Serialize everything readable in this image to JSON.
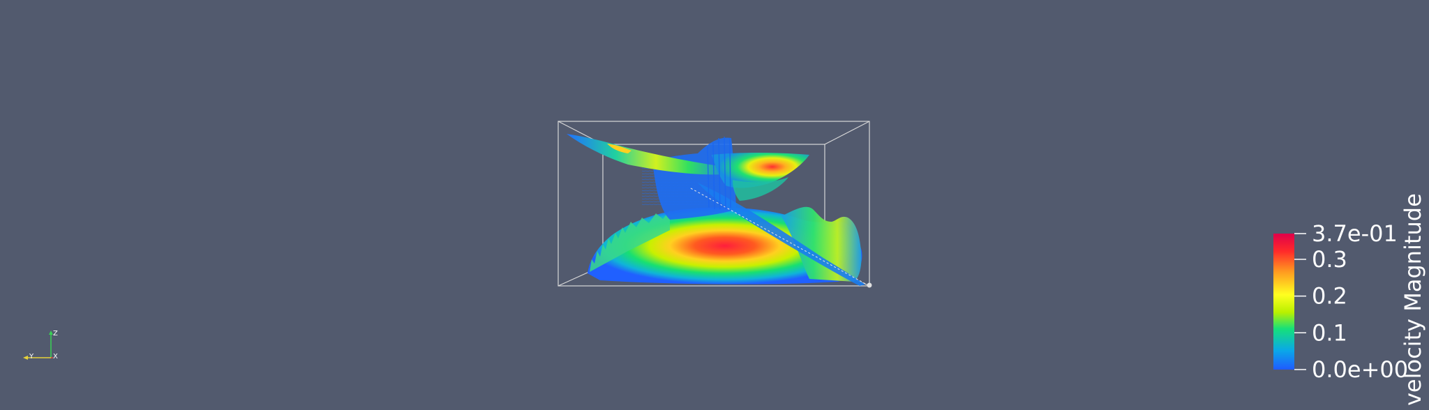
{
  "scene": {
    "background": "#525a6e",
    "colormap": [
      "#1f5bff",
      "#0aa8e8",
      "#16e07a",
      "#b8f000",
      "#ffff20",
      "#ff9a20",
      "#ff2a2a",
      "#e0004a"
    ]
  },
  "colorbar": {
    "title": "velocity Magnitude",
    "range": [
      0.0,
      0.37
    ],
    "ticks": [
      {
        "value": 0.37,
        "label": "3.7e-01"
      },
      {
        "value": 0.3,
        "label": "0.3"
      },
      {
        "value": 0.2,
        "label": "0.2"
      },
      {
        "value": 0.1,
        "label": "0.1"
      },
      {
        "value": 0.0,
        "label": "0.0e+00"
      }
    ]
  },
  "orientation_axes": {
    "z_label": "Z",
    "y_label": "Y",
    "x_label": "X",
    "z_color": "#39d353",
    "y_color": "#e6d23a",
    "x_color": "#e64a3a"
  }
}
